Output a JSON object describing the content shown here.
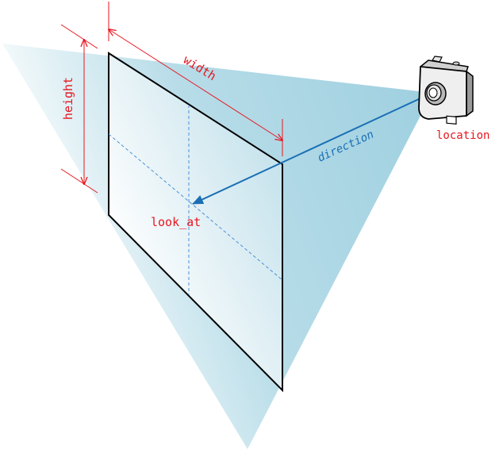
{
  "labels": {
    "width": "width",
    "height": "height",
    "direction": "direction",
    "look_at": "look_at",
    "location": "location"
  },
  "colors": {
    "frustum": "#9fd0e0",
    "dimension": "#e8161f",
    "direction_arrow": "#1a6fb5",
    "plane_outline": "#000000",
    "guide_lines": "#4a90d9"
  },
  "icons": {
    "camera": "camera-icon"
  }
}
